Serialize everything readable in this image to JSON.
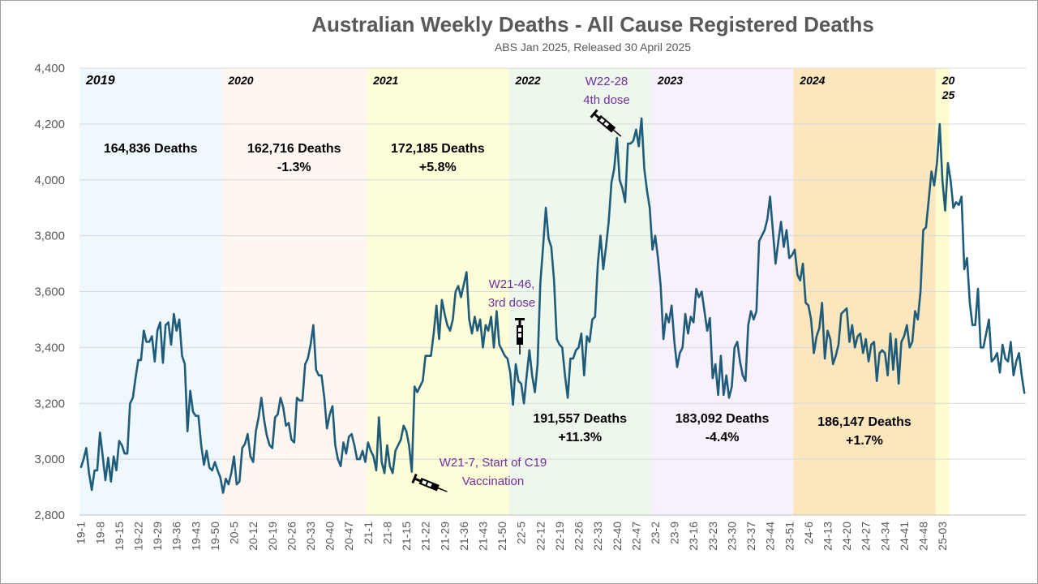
{
  "chart_data": {
    "type": "line",
    "title": "Australian Weekly Deaths - All Cause Registered Deaths",
    "subtitle": "ABS Jan 2025, Released 30 April 2025",
    "ylim": [
      2800,
      4400
    ],
    "yticks": [
      2800,
      3000,
      3200,
      3400,
      3600,
      3800,
      4000,
      4200,
      4400
    ],
    "ytick_labels": [
      "2,800",
      "3,000",
      "3,200",
      "3,400",
      "3,600",
      "3,800",
      "4,000",
      "4,200",
      "4,400"
    ],
    "grid": "horizontal",
    "series_color": "#1f5c7a",
    "projection_color": "#3b8a6e",
    "xtick_labels": [
      "19-1",
      "19-8",
      "19-15",
      "19-22",
      "19-29",
      "19-36",
      "19-43",
      "19-50",
      "20-5",
      "20-12",
      "20-19",
      "20-26",
      "20-33",
      "20-40",
      "20-47",
      "21-1",
      "21-8",
      "21-15",
      "21-22",
      "21-29",
      "21-36",
      "21-43",
      "21-50",
      "22-5",
      "22-12",
      "22-19",
      "22-26",
      "22-33",
      "22-40",
      "22-47",
      "23-2",
      "23-9",
      "23-16",
      "23-23",
      "23-30",
      "23-37",
      "23-44",
      "23-51",
      "24-6",
      "24-13",
      "24-20",
      "24-27",
      "24-34",
      "24-41",
      "24-48",
      "25-03"
    ],
    "year_bands": [
      {
        "label": "2019",
        "color": "#eef8fd",
        "weeks": 52
      },
      {
        "label": "2020",
        "color": "#fdf6f1",
        "weeks": 53
      },
      {
        "label": "2021",
        "color": "#fdfdd8",
        "weeks": 52
      },
      {
        "label": "2022",
        "color": "#eef7ec",
        "weeks": 52
      },
      {
        "label": "2023",
        "color": "#f8f0fa",
        "weeks": 52
      },
      {
        "label": "2024",
        "color": "#fbe6bd",
        "weeks": 52
      },
      {
        "label": "20\n25",
        "color": "#fdfdd0",
        "weeks": 5
      }
    ],
    "year_totals": [
      {
        "year": "2019",
        "text": "164,836 Deaths",
        "change": ""
      },
      {
        "year": "2020",
        "text": "162,716 Deaths",
        "change": "-1.3%"
      },
      {
        "year": "2021",
        "text": "172,185 Deaths",
        "change": "+5.8%"
      },
      {
        "year": "2022",
        "text": "191,557 Deaths",
        "change": "+11.3%"
      },
      {
        "year": "2023",
        "text": "183,092 Deaths",
        "change": "-4.4%"
      },
      {
        "year": "2024",
        "text": "186,147 Deaths",
        "change": "+1.7%"
      }
    ],
    "annotations": [
      {
        "line1": "W21-7, Start of C19",
        "line2": "Vaccination"
      },
      {
        "line1": "W21-46,",
        "line2": "3rd dose"
      },
      {
        "line1": "W22-28",
        "line2": "4th dose"
      }
    ],
    "series": [
      {
        "values": [
          2970,
          3000,
          3040,
          2950,
          2890,
          2960,
          2960,
          3095,
          3010,
          2925,
          3005,
          2920,
          3010,
          2960,
          3065,
          3050,
          3020,
          3020,
          3200,
          3220,
          3290,
          3355,
          3355,
          3460,
          3420,
          3420,
          3440,
          3350,
          3460,
          3490,
          3345,
          3480,
          3490,
          3410,
          3520,
          3460,
          3500,
          3370,
          3340,
          3100,
          3245,
          3170,
          3155,
          3155,
          3050,
          2980,
          3030,
          2970,
          2960,
          2990,
          2960,
          2935,
          2880,
          2930,
          2910,
          2950,
          3010,
          2910,
          2920,
          3040,
          3055,
          3090,
          3010,
          2990,
          3100,
          3150,
          3220,
          3140,
          3085,
          3050,
          3040,
          3150,
          3160,
          3220,
          3185,
          3120,
          3130,
          3070,
          3060,
          3220,
          3210,
          3210,
          3340,
          3360,
          3410,
          3480,
          3320,
          3300,
          3300,
          3220,
          3110,
          3160,
          3190,
          3050,
          3000,
          2975,
          3060,
          3020,
          3080,
          3090,
          3050,
          3000,
          3000,
          3030,
          2990,
          3060,
          3030,
          3010,
          2960,
          3150,
          2990,
          2950,
          3050,
          2975,
          2950,
          3030,
          3050,
          3070,
          3120,
          3100,
          3050,
          2955,
          3260,
          3240,
          3260,
          3280,
          3370,
          3370,
          3370,
          3450,
          3550,
          3430,
          3570,
          3520,
          3480,
          3460,
          3500,
          3600,
          3620,
          3580,
          3625,
          3670,
          3500,
          3450,
          3510,
          3460,
          3500,
          3400,
          3480,
          3460,
          3510,
          3400,
          3530,
          3410,
          3390,
          3370,
          3360,
          3310,
          3195,
          3340,
          3280,
          3270,
          3200,
          3300,
          3390,
          3300,
          3240,
          3340,
          3630,
          3760,
          3900,
          3790,
          3760,
          3640,
          3430,
          3410,
          3400,
          3300,
          3220,
          3360,
          3360,
          3390,
          3400,
          3450,
          3300,
          3440,
          3420,
          3500,
          3510,
          3700,
          3800,
          3680,
          3760,
          3850,
          3990,
          4040,
          4150,
          4000,
          3970,
          3920,
          4130,
          4130,
          4140,
          4180,
          4120,
          4220,
          4040,
          3960,
          3900,
          3750,
          3800,
          3720,
          3620,
          3430,
          3520,
          3490,
          3550,
          3420,
          3330,
          3380,
          3400,
          3520,
          3450,
          3510,
          3490,
          3610,
          3580,
          3600,
          3530,
          3460,
          3505,
          3290,
          3340,
          3230,
          3370,
          3230,
          3300,
          3220,
          3260,
          3400,
          3420,
          3350,
          3300,
          3280,
          3480,
          3530,
          3500,
          3530,
          3780,
          3800,
          3820,
          3860,
          3940,
          3820,
          3700,
          3780,
          3850,
          3760,
          3820,
          3720,
          3730,
          3750,
          3660,
          3640,
          3700,
          3560,
          3550,
          3500,
          3380,
          3440,
          3470,
          3560,
          3360,
          3460,
          3430,
          3340,
          3370,
          3410,
          3520,
          3530,
          3540,
          3420,
          3480,
          3400,
          3440,
          3450,
          3380,
          3430,
          3350,
          3410,
          3420,
          3280,
          3380,
          3390,
          3380,
          3300,
          3450,
          3320,
          3430,
          3270,
          3420,
          3440,
          3480,
          3400,
          3420,
          3530,
          3500,
          3600,
          3820,
          3830,
          3930,
          4030,
          3980,
          4060,
          4200,
          4000,
          3890,
          4060,
          4000,
          3900,
          3920,
          3910,
          3940,
          3680,
          3720,
          3560,
          3480,
          3480,
          3610,
          3400,
          3400,
          3450,
          3500,
          3350,
          3360,
          3380,
          3310,
          3410,
          3360,
          3350,
          3420,
          3300,
          3350,
          3380,
          3300,
          3235
        ],
        "projection_from_index": 361
      }
    ]
  }
}
